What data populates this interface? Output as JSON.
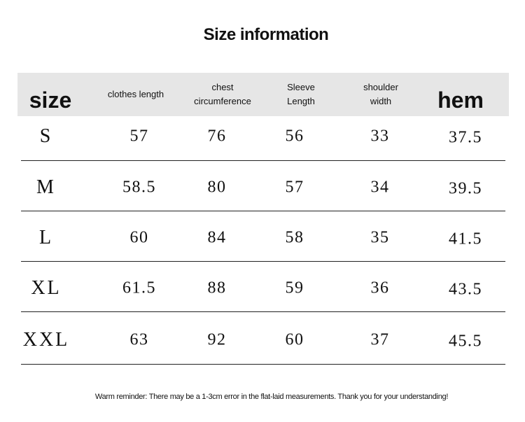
{
  "title": "Size information",
  "table": {
    "header": [
      [
        "size"
      ],
      [
        "clothes length"
      ],
      [
        "chest",
        "circumference"
      ],
      [
        "Sleeve",
        "Length"
      ],
      [
        "shoulder",
        "width"
      ],
      [
        "hem"
      ]
    ],
    "rows": [
      [
        "S",
        57,
        76,
        56,
        33,
        37.5
      ],
      [
        "M",
        58.5,
        80,
        57,
        34,
        39.5
      ],
      [
        "L",
        60,
        84,
        58,
        35,
        41.5
      ],
      [
        "XL",
        61.5,
        88,
        59,
        36,
        43.5
      ],
      [
        "XXL",
        63,
        92,
        60,
        37,
        45.5
      ]
    ]
  },
  "note": "Warm reminder: There may be a 1-3cm error in the flat-laid measurements. Thank you for your understanding!"
}
